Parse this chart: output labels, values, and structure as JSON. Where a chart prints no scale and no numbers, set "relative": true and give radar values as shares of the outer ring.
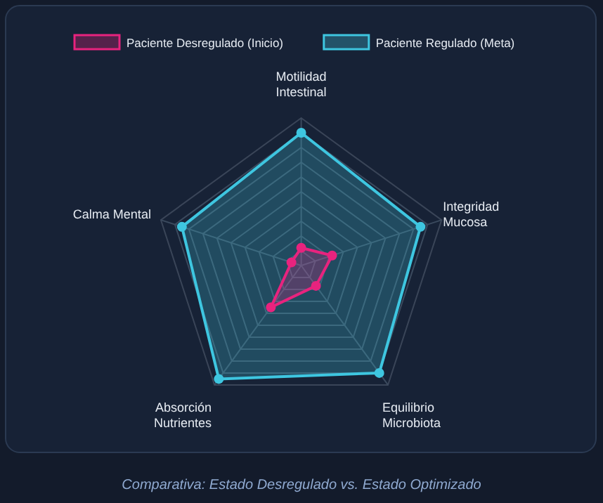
{
  "chart_data": {
    "type": "radar",
    "relative": true,
    "categories": [
      "Motilidad\nIntestinal",
      "Integridad\nMucosa",
      "Equilibrio\nMicrobiota",
      "Absorción\nNutrientes",
      "Calma Mental"
    ],
    "series": [
      {
        "name": "Paciente Desregulado (Inicio)",
        "color": "#e8237e",
        "values": [
          0.12,
          0.22,
          0.17,
          0.35,
          0.07
        ]
      },
      {
        "name": "Paciente Regulado (Meta)",
        "color": "#3ec6e0",
        "values": [
          0.9,
          0.85,
          0.9,
          0.95,
          0.85
        ]
      }
    ],
    "legend": "top",
    "marker": "circle",
    "grid": true,
    "annotations": [
      "Comparativa: Estado Desregulado vs. Estado Optimizado"
    ]
  }
}
